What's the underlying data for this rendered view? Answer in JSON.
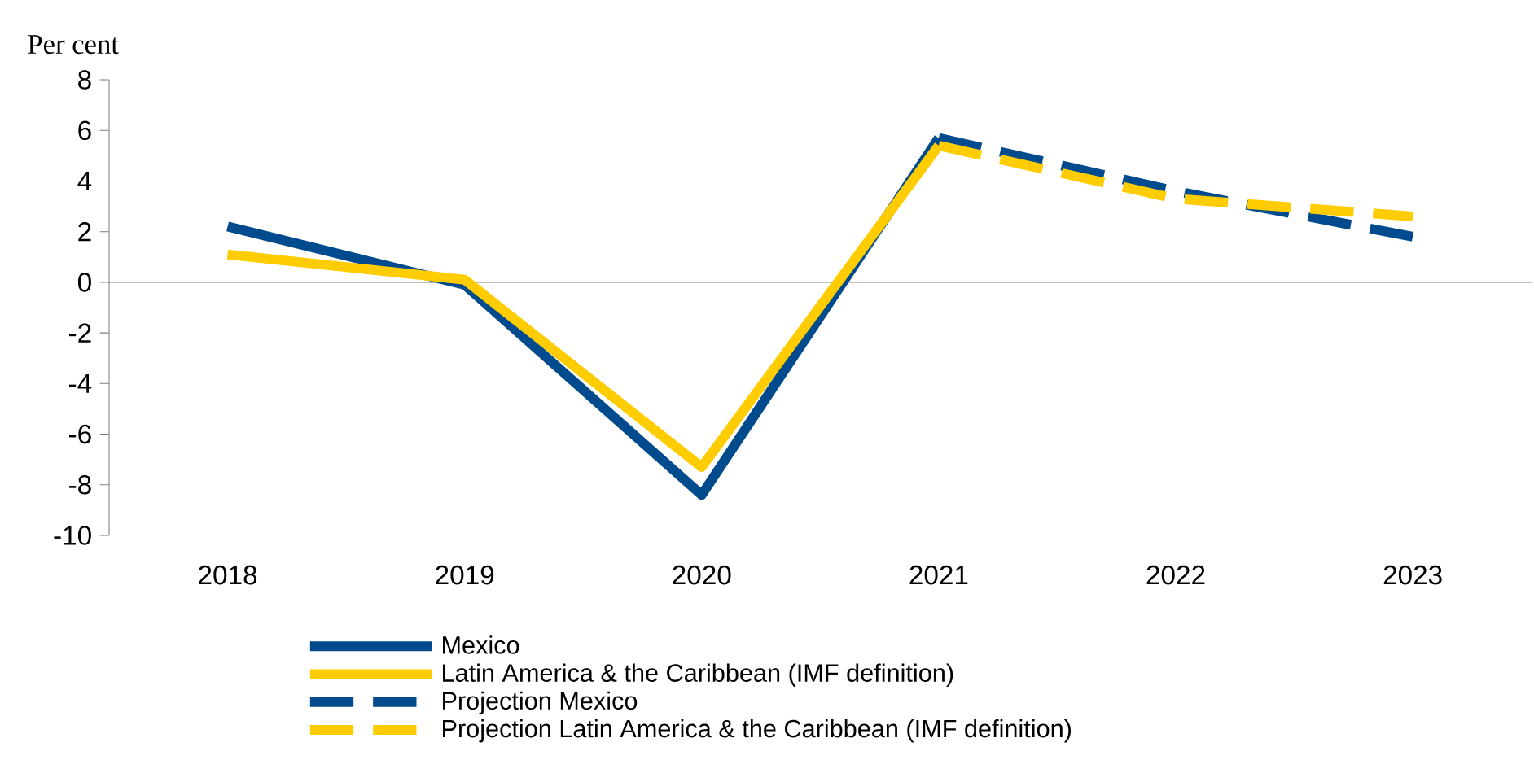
{
  "chart_data": {
    "type": "line",
    "ylabel": "Per cent",
    "categories": [
      "2018",
      "2019",
      "2020",
      "2021",
      "2022",
      "2023"
    ],
    "series": [
      {
        "name": "Mexico",
        "color": "#004b8d",
        "line_style": "solid",
        "values": [
          2.2,
          -0.1,
          -8.4,
          5.7,
          null,
          null
        ]
      },
      {
        "name": "Latin America & the Caribbean (IMF definition)",
        "color": "#ffcc00",
        "line_style": "solid",
        "values": [
          1.1,
          0.1,
          -7.3,
          5.4,
          null,
          null
        ]
      },
      {
        "name": "Projection Mexico",
        "color": "#004b8d",
        "line_style": "dashed",
        "values": [
          null,
          null,
          null,
          5.7,
          3.6,
          1.8
        ]
      },
      {
        "name": "Projection Latin America & the Caribbean (IMF definition)",
        "color": "#ffcc00",
        "line_style": "dashed",
        "values": [
          null,
          null,
          null,
          5.4,
          3.3,
          2.6
        ]
      }
    ],
    "ylim": [
      -10,
      8
    ],
    "yticks": [
      -10,
      -8,
      -6,
      -4,
      -2,
      0,
      2,
      4,
      6,
      8
    ],
    "legend": "bottom",
    "marker": "none"
  }
}
